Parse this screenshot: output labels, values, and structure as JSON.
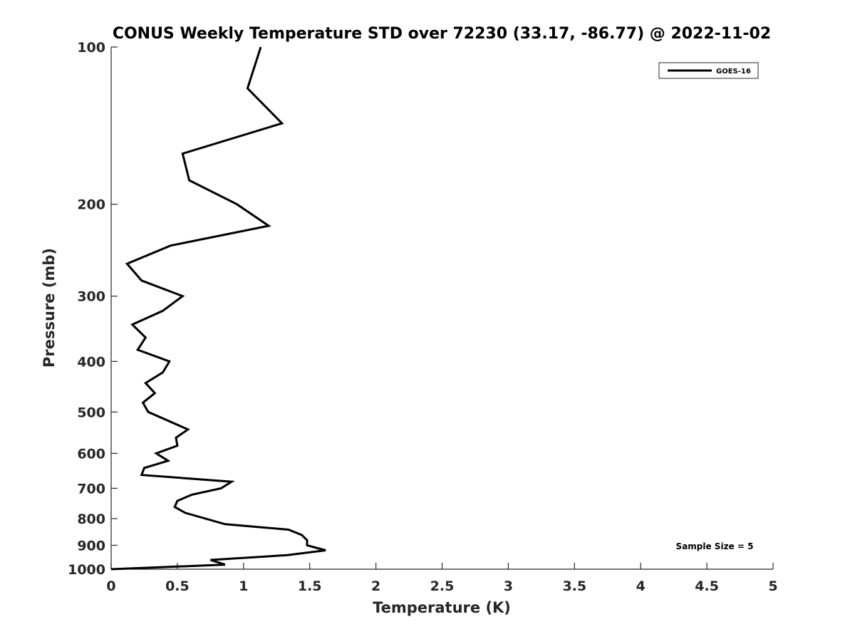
{
  "chart_data": {
    "type": "line",
    "title": "CONUS Weekly Temperature STD over 72230 (33.17, -86.77) @ 2022-11-02",
    "xlabel": "Temperature (K)",
    "ylabel": "Pressure (mb)",
    "xlim": [
      0,
      5
    ],
    "ylim": [
      100,
      1000
    ],
    "yscale": "log",
    "yreversed": true,
    "grid": false,
    "xticks": [
      "0",
      "0.5",
      "1",
      "1.5",
      "2",
      "2.5",
      "3",
      "3.5",
      "4",
      "4.5",
      "5"
    ],
    "yticks": [
      "100",
      "200",
      "300",
      "400",
      "500",
      "600",
      "700",
      "800",
      "900",
      "1000"
    ],
    "legend": {
      "position": "top-right",
      "entries": [
        "GOES-16"
      ]
    },
    "annotation": "Sample Size = 5",
    "series": [
      {
        "name": "GOES-16",
        "color": "#000000",
        "points": [
          [
            1.13,
            100
          ],
          [
            1.03,
            120
          ],
          [
            1.29,
            140
          ],
          [
            0.54,
            160
          ],
          [
            0.59,
            180
          ],
          [
            0.95,
            200
          ],
          [
            1.19,
            220
          ],
          [
            0.45,
            240
          ],
          [
            0.12,
            260
          ],
          [
            0.23,
            280
          ],
          [
            0.54,
            300
          ],
          [
            0.39,
            320
          ],
          [
            0.16,
            340
          ],
          [
            0.26,
            360
          ],
          [
            0.2,
            380
          ],
          [
            0.44,
            400
          ],
          [
            0.39,
            420
          ],
          [
            0.26,
            440
          ],
          [
            0.33,
            460
          ],
          [
            0.24,
            480
          ],
          [
            0.28,
            500
          ],
          [
            0.58,
            540
          ],
          [
            0.49,
            560
          ],
          [
            0.5,
            580
          ],
          [
            0.34,
            600
          ],
          [
            0.43,
            620
          ],
          [
            0.25,
            640
          ],
          [
            0.23,
            660
          ],
          [
            0.91,
            680
          ],
          [
            0.83,
            700
          ],
          [
            0.61,
            720
          ],
          [
            0.5,
            740
          ],
          [
            0.48,
            760
          ],
          [
            0.56,
            780
          ],
          [
            0.86,
            820
          ],
          [
            1.34,
            840
          ],
          [
            1.44,
            860
          ],
          [
            1.48,
            880
          ],
          [
            1.48,
            900
          ],
          [
            1.62,
            920
          ],
          [
            1.33,
            940
          ],
          [
            0.75,
            960
          ],
          [
            0.86,
            980
          ],
          [
            0.0,
            1000
          ]
        ]
      }
    ]
  }
}
